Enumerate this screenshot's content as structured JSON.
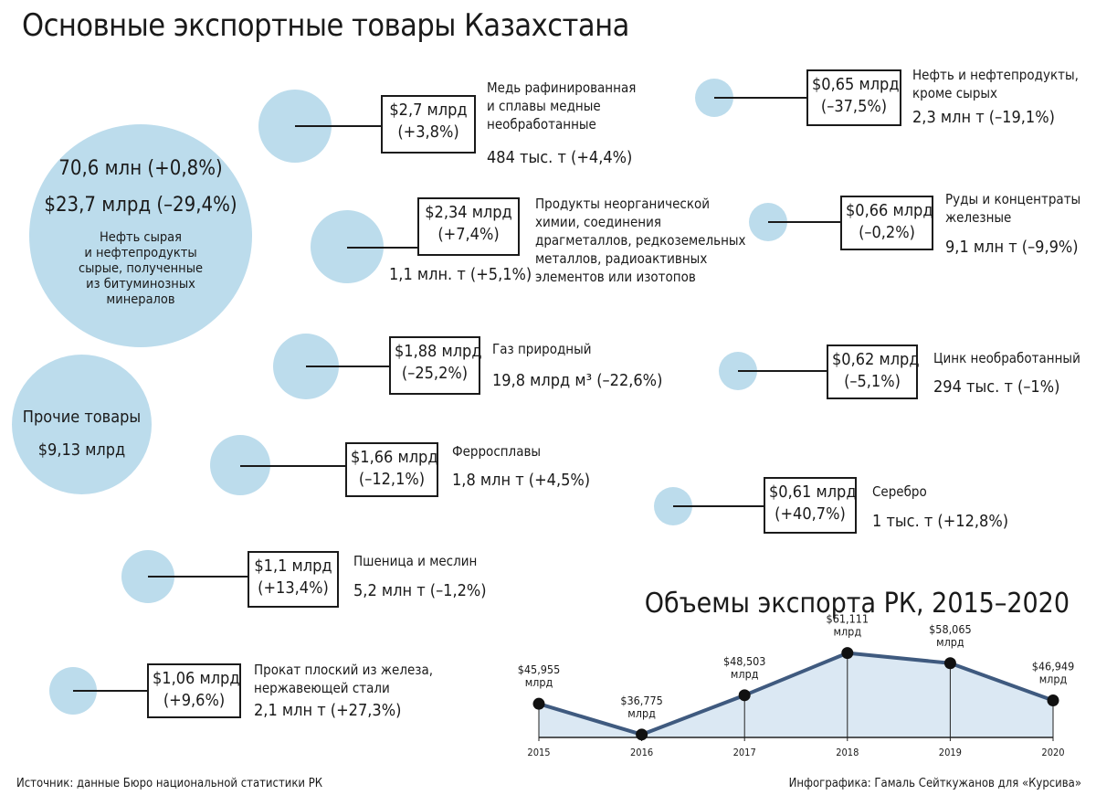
{
  "title": "Основные экспортные товары Казахстана",
  "big_bubble": {
    "volume": "70,6 млн (+0,8%)",
    "value": "$23,7 млрд (–29,4%)",
    "label_lines": [
      "Нефть сырая",
      "и нефтепродукты",
      "сырые, полученные",
      "из битуминозных",
      "минералов"
    ]
  },
  "other_bubble": {
    "label": "Прочие товары",
    "value": "$9,13 млрд"
  },
  "items": [
    {
      "value": "$2,7 млрд",
      "change": "(+3,8%)",
      "name_lines": [
        "Медь рафинированная",
        "и сплавы медные",
        "необработанные"
      ],
      "volume": "484 тыс. т (+4,4%)"
    },
    {
      "value": "$2,34 млрд",
      "change": "(+7,4%)",
      "name_lines": [
        "Продукты неорганической",
        "химии, соединения",
        "драгметаллов, редкоземельных",
        "металлов, радиоактивных",
        "элементов или изотопов"
      ],
      "volume": "1,1 млн. т (+5,1%)"
    },
    {
      "value": "$1,88 млрд",
      "change": "(–25,2%)",
      "name_lines": [
        "Газ природный"
      ],
      "volume": "19,8 млрд м³ (–22,6%)"
    },
    {
      "value": "$1,66 млрд",
      "change": "(–12,1%)",
      "name_lines": [
        "Ферросплавы"
      ],
      "volume": "1,8 млн т (+4,5%)"
    },
    {
      "value": "$1,1 млрд",
      "change": "(+13,4%)",
      "name_lines": [
        "Пшеница и меслин"
      ],
      "volume": "5,2 млн т (–1,2%)"
    },
    {
      "value": "$1,06 млрд",
      "change": "(+9,6%)",
      "name_lines": [
        "Прокат плоский из железа,",
        "нержавеющей стали"
      ],
      "volume": "2,1 млн т (+27,3%)"
    },
    {
      "value": "$0,65 млрд",
      "change": "(–37,5%)",
      "name_lines": [
        "Нефть и нефтепродукты,",
        "кроме сырых"
      ],
      "volume": "2,3 млн т (–19,1%)"
    },
    {
      "value": "$0,66 млрд",
      "change": "(–0,2%)",
      "name_lines": [
        "Руды и концентраты",
        "железные"
      ],
      "volume": "9,1 млн т (–9,9%)"
    },
    {
      "value": "$0,62 млрд",
      "change": "(–5,1%)",
      "name_lines": [
        "Цинк необработанный"
      ],
      "volume": "294 тыс. т (–1%)"
    },
    {
      "value": "$0,61 млрд",
      "change": "(+40,7%)",
      "name_lines": [
        "Серебро"
      ],
      "volume": "1 тыс. т (+12,8%)"
    }
  ],
  "source": "Источник: данные Бюро национальной статистики РК",
  "credit": "Инфографика: Гамаль Сейткужанов для «Курсива»",
  "colors": {
    "bubble": "#bcdcec",
    "line": "#3f5a7f",
    "area": "#dbe8f3",
    "marker": "#111111"
  },
  "chart_data": {
    "type": "area",
    "title": "Объемы экспорта РК, 2015–2020",
    "categories": [
      "2015",
      "2016",
      "2017",
      "2018",
      "2019",
      "2020"
    ],
    "values": [
      45955,
      36775,
      48503,
      61111,
      58065,
      46949
    ],
    "value_labels": [
      "$45,955 млрд",
      "$36,775 млрд",
      "$48,503 млрд",
      "$61,111 млрд",
      "$58,065 млрд",
      "$46,949 млрд"
    ],
    "ylim": [
      28000,
      64000
    ],
    "grid": false,
    "legend": "none"
  }
}
